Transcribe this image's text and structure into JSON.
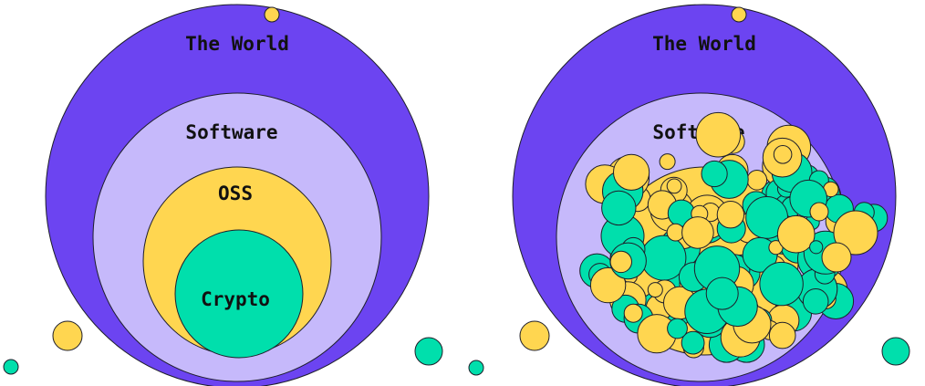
{
  "panels": [
    {
      "labels": [
        "The World",
        "Software",
        "OSS",
        "Crypto"
      ]
    },
    {
      "labels": [
        "The World",
        "Software"
      ]
    }
  ]
}
